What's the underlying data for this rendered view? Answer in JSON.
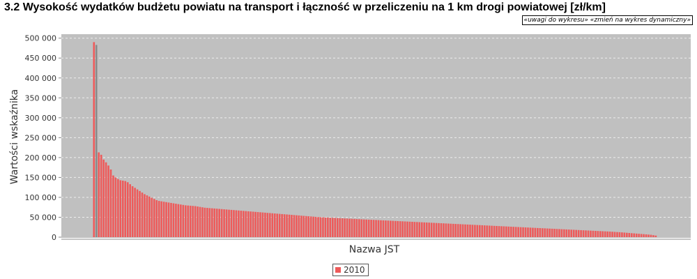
{
  "page": {
    "title": "3.2 Wysokość wydatków budżetu powiatu na transport i łączność w przeliczeniu na 1 km drogi powiatowej [zł/km]",
    "link_notes": "«uwagi do wykresu»",
    "link_dynamic": "«zmień na wykres dynamiczny»"
  },
  "colors": {
    "plot_background": "#c0c0c0",
    "bar": "#ee5a5a",
    "bar_highlight": "#8a8a8a",
    "grid": "#eeeeee"
  },
  "chart_data": {
    "type": "bar",
    "title": "3.2 Wysokość wydatków budżetu powiatu na transport i łączność w przeliczeniu na 1 km drogi powiatowej [zł/km]",
    "xlabel": "Nazwa JST",
    "ylabel": "Wartości wskaźnika",
    "ylim": [
      0,
      510000
    ],
    "yticks": [
      0,
      50000,
      100000,
      150000,
      200000,
      250000,
      300000,
      350000,
      400000,
      450000,
      500000
    ],
    "ytick_labels": [
      "0",
      "50 000",
      "100 000",
      "150 000",
      "200 000",
      "250 000",
      "300 000",
      "350 000",
      "400 000",
      "450 000",
      "500 000"
    ],
    "grid": true,
    "legend_position": "bottom-center",
    "highlighted_bar_index": 1,
    "series": [
      {
        "name": "2010",
        "values": [
          490000,
          483000,
          213000,
          207000,
          195000,
          188000,
          180000,
          170000,
          155000,
          150000,
          146000,
          143000,
          142000,
          141000,
          138000,
          133000,
          128000,
          124000,
          120000,
          116000,
          112000,
          108000,
          105000,
          102000,
          99000,
          96000,
          93000,
          91000,
          90000,
          89000,
          88000,
          87000,
          86000,
          85000,
          84000,
          83000,
          82000,
          81000,
          80000,
          79500,
          79000,
          78500,
          78000,
          77000,
          76000,
          75000,
          74000,
          73500,
          73000,
          72500,
          72000,
          71500,
          71000,
          70500,
          70000,
          69500,
          69000,
          68500,
          68000,
          67500,
          67000,
          66500,
          66000,
          65500,
          65000,
          64500,
          64000,
          63500,
          63000,
          62500,
          62000,
          61500,
          61000,
          60500,
          60000,
          59500,
          59000,
          58500,
          58000,
          57500,
          57000,
          56500,
          56000,
          55500,
          55000,
          54500,
          54000,
          53500,
          53000,
          52500,
          52000,
          51500,
          51000,
          50500,
          50000,
          49700,
          49400,
          49100,
          48800,
          48500,
          48200,
          47900,
          47600,
          47300,
          47000,
          46700,
          46400,
          46100,
          45800,
          45500,
          45200,
          44900,
          44600,
          44300,
          44000,
          43700,
          43400,
          43100,
          42800,
          42500,
          42200,
          41900,
          41600,
          41300,
          41000,
          40700,
          40400,
          40100,
          39800,
          39500,
          39200,
          38900,
          38600,
          38300,
          38000,
          37700,
          37400,
          37100,
          36800,
          36500,
          36200,
          35900,
          35600,
          35300,
          35000,
          34700,
          34400,
          34100,
          33800,
          33500,
          33200,
          32900,
          32600,
          32300,
          32000,
          31700,
          31400,
          31100,
          30800,
          30500,
          30200,
          29900,
          29600,
          29300,
          29000,
          28700,
          28400,
          28100,
          27800,
          27500,
          27200,
          26900,
          26600,
          26300,
          26000,
          25700,
          25400,
          25100,
          24800,
          24500,
          24200,
          23900,
          23600,
          23300,
          23000,
          22700,
          22400,
          22100,
          21800,
          21500,
          21200,
          20900,
          20600,
          20300,
          20000,
          19700,
          19400,
          19100,
          18800,
          18500,
          18200,
          17900,
          17600,
          17300,
          17000,
          16700,
          16400,
          16100,
          15800,
          15500,
          15200,
          14900,
          14600,
          14300,
          14000,
          13600,
          13200,
          12800,
          12400,
          12000,
          11500,
          11000,
          10500,
          10000,
          9500,
          9000,
          8500,
          8000,
          7500,
          7000,
          6500,
          6000,
          5000,
          4000
        ]
      }
    ]
  }
}
